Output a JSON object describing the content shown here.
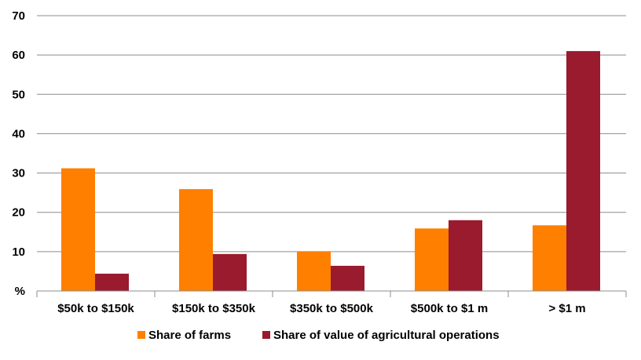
{
  "chart_data": {
    "type": "bar",
    "categories": [
      "$50k to $150k",
      "$150k to $350k",
      "$350k to $500k",
      "$500k to $1 m",
      "> $1 m"
    ],
    "series": [
      {
        "name": "Share of farms",
        "color": "#FF7F00",
        "values": [
          31.2,
          25.9,
          10.1,
          15.9,
          16.7
        ]
      },
      {
        "name": "Share of value of agricultural operations",
        "color": "#9A1A2E",
        "values": [
          4.4,
          9.4,
          6.4,
          18.0,
          61.0
        ]
      }
    ],
    "y_tick_labels": [
      "%",
      "10",
      "20",
      "30",
      "40",
      "50",
      "60",
      "70"
    ],
    "ylim": [
      0,
      70
    ],
    "y_step": 10,
    "grid": true,
    "legend_position": "bottom"
  }
}
